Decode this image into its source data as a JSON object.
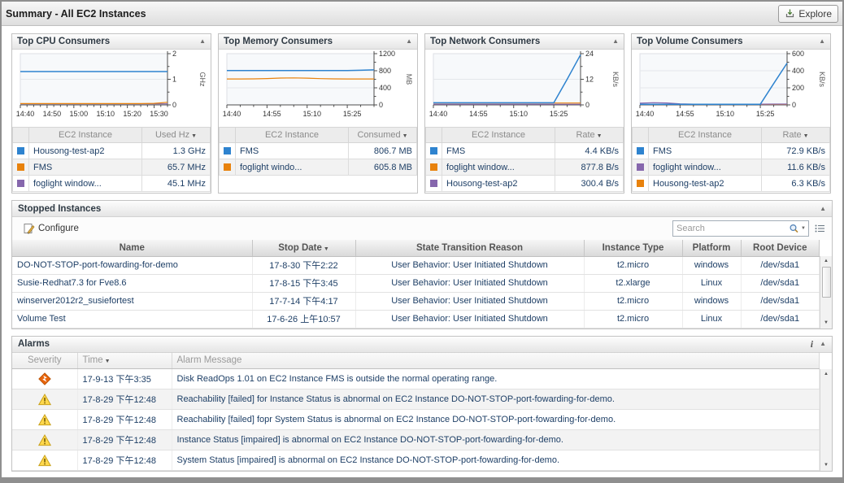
{
  "header": {
    "title": "Summary - All EC2 Instances",
    "explore_label": "Explore"
  },
  "colors": {
    "accent_blue": "#2e83cf",
    "accent_orange": "#e8820d",
    "accent_purple": "#8667ad",
    "text_navy": "#1e3f66"
  },
  "consumer_panels": [
    {
      "title": "Top CPU Consumers",
      "columns": [
        "EC2 Instance",
        "Used Hz"
      ],
      "rows": [
        {
          "color": "#2e83cf",
          "name": "Housong-test-ap2",
          "value": "1.3 GHz"
        },
        {
          "color": "#e8820d",
          "name": "FMS",
          "value": "65.7 MHz"
        },
        {
          "color": "#8667ad",
          "name": "foglight window...",
          "value": "45.1 MHz"
        }
      ]
    },
    {
      "title": "Top Memory Consumers",
      "columns": [
        "EC2 Instance",
        "Consumed"
      ],
      "rows": [
        {
          "color": "#2e83cf",
          "name": "FMS",
          "value": "806.7 MB"
        },
        {
          "color": "#e8820d",
          "name": "foglight windo...",
          "value": "605.8 MB"
        }
      ]
    },
    {
      "title": "Top Network Consumers",
      "columns": [
        "EC2 Instance",
        "Rate"
      ],
      "rows": [
        {
          "color": "#2e83cf",
          "name": "FMS",
          "value": "4.4 KB/s"
        },
        {
          "color": "#e8820d",
          "name": "foglight window...",
          "value": "877.8 B/s"
        },
        {
          "color": "#8667ad",
          "name": "Housong-test-ap2",
          "value": "300.4 B/s"
        }
      ]
    },
    {
      "title": "Top Volume Consumers",
      "columns": [
        "EC2 Instance",
        "Rate"
      ],
      "rows": [
        {
          "color": "#2e83cf",
          "name": "FMS",
          "value": "72.9 KB/s"
        },
        {
          "color": "#8667ad",
          "name": "foglight window...",
          "value": "11.6 KB/s"
        },
        {
          "color": "#e8820d",
          "name": "Housong-test-ap2",
          "value": "6.3 KB/s"
        }
      ]
    }
  ],
  "chart_data": [
    {
      "type": "line",
      "title": "Top CPU Consumers",
      "ylabel": "GHz",
      "ylim": [
        0,
        2
      ],
      "yticks": [
        0,
        1,
        2
      ],
      "x_ticks": [
        "14:40",
        "14:50",
        "15:00",
        "15:10",
        "15:20",
        "15:30"
      ],
      "x_tick_minutes": [
        0,
        10,
        20,
        30,
        40,
        50
      ],
      "x_span_minutes": 55,
      "series": [
        {
          "name": "Housong-test-ap2",
          "color": "#2e83cf",
          "values": [
            1.3,
            1.3,
            1.3,
            1.3,
            1.3,
            1.3,
            1.3,
            1.3,
            1.3,
            1.3,
            1.3,
            1.3
          ]
        },
        {
          "name": "FMS",
          "color": "#e8820d",
          "values": [
            0.05,
            0.05,
            0.05,
            0.05,
            0.05,
            0.05,
            0.05,
            0.05,
            0.05,
            0.05,
            0.06,
            0.1
          ]
        },
        {
          "name": "foglight window...",
          "color": "#8667ad",
          "values": [
            0.04,
            0.04,
            0.04,
            0.04,
            0.04,
            0.04,
            0.04,
            0.04,
            0.04,
            0.04,
            0.04,
            0.04
          ]
        }
      ]
    },
    {
      "type": "line",
      "title": "Top Memory Consumers",
      "ylabel": "MB",
      "ylim": [
        0,
        1200
      ],
      "yticks": [
        0,
        400,
        800,
        1200
      ],
      "x_ticks": [
        "14:40",
        "14:55",
        "15:10",
        "15:25"
      ],
      "x_tick_minutes": [
        0,
        15,
        30,
        45
      ],
      "x_span_minutes": 55,
      "series": [
        {
          "name": "FMS",
          "color": "#2e83cf",
          "values": [
            805,
            805,
            806,
            806,
            806,
            806,
            806,
            806,
            806,
            806,
            812,
            820
          ]
        },
        {
          "name": "foglight windo...",
          "color": "#e8820d",
          "values": [
            608,
            608,
            610,
            618,
            628,
            632,
            626,
            616,
            610,
            608,
            607,
            607
          ]
        }
      ]
    },
    {
      "type": "line",
      "title": "Top Network Consumers",
      "ylabel": "KB/s",
      "ylim": [
        0,
        24
      ],
      "yticks": [
        0,
        12,
        24
      ],
      "x_ticks": [
        "14:40",
        "14:55",
        "15:10",
        "15:25"
      ],
      "x_tick_minutes": [
        0,
        15,
        30,
        45
      ],
      "x_span_minutes": 55,
      "series": [
        {
          "name": "FMS",
          "color": "#2e83cf",
          "values": [
            1.0,
            1.0,
            1.0,
            1.0,
            1.0,
            1.0,
            1.0,
            1.0,
            1.0,
            1.0,
            12.0,
            23.5
          ]
        },
        {
          "name": "foglight window...",
          "color": "#e8820d",
          "values": [
            0.86,
            0.86,
            0.86,
            0.86,
            0.86,
            0.86,
            0.86,
            0.86,
            0.86,
            0.86,
            0.88,
            0.88
          ]
        },
        {
          "name": "Housong-test-ap2",
          "color": "#8667ad",
          "values": [
            0.3,
            0.3,
            0.3,
            0.3,
            0.3,
            0.3,
            0.3,
            0.3,
            0.3,
            0.3,
            0.3,
            0.3
          ]
        }
      ]
    },
    {
      "type": "line",
      "title": "Top Volume Consumers",
      "ylabel": "KB/s",
      "ylim": [
        0,
        600
      ],
      "yticks": [
        0,
        200,
        400,
        600
      ],
      "x_ticks": [
        "14:40",
        "14:55",
        "15:10",
        "15:25"
      ],
      "x_tick_minutes": [
        0,
        15,
        30,
        45
      ],
      "x_span_minutes": 55,
      "series": [
        {
          "name": "FMS",
          "color": "#2e83cf",
          "values": [
            8,
            8,
            8,
            8,
            8,
            8,
            8,
            8,
            8,
            8,
            250,
            490
          ]
        },
        {
          "name": "foglight window...",
          "color": "#8667ad",
          "values": [
            20,
            26,
            23,
            12,
            9,
            9,
            9,
            9,
            9,
            9,
            10,
            10
          ]
        },
        {
          "name": "Housong-test-ap2",
          "color": "#e8820d",
          "values": [
            7,
            7,
            7,
            7,
            7,
            7,
            7,
            7,
            7,
            7,
            7,
            7
          ]
        }
      ]
    }
  ],
  "stopped_instances": {
    "title": "Stopped Instances",
    "configure_label": "Configure",
    "search_placeholder": "Search",
    "columns": [
      "Name",
      "Stop Date",
      "State Transition Reason",
      "Instance Type",
      "Platform",
      "Root Device"
    ],
    "sorted_column": "Stop Date",
    "rows": [
      {
        "name": "DO-NOT-STOP-port-fowarding-for-demo",
        "stop_date": "17-8-30 下午2:22",
        "reason": "User Behavior: User Initiated Shutdown",
        "instance_type": "t2.micro",
        "platform": "windows",
        "root_device": "/dev/sda1"
      },
      {
        "name": "Susie-Redhat7.3 for Fve8.6",
        "stop_date": "17-8-15 下午3:45",
        "reason": "User Behavior: User Initiated Shutdown",
        "instance_type": "t2.xlarge",
        "platform": "Linux",
        "root_device": "/dev/sda1"
      },
      {
        "name": "winserver2012r2_susiefortest",
        "stop_date": "17-7-14 下午4:17",
        "reason": "User Behavior: User Initiated Shutdown",
        "instance_type": "t2.micro",
        "platform": "windows",
        "root_device": "/dev/sda1"
      },
      {
        "name": "Volume Test",
        "stop_date": "17-6-26 上午10:57",
        "reason": "User Behavior: User Initiated Shutdown",
        "instance_type": "t2.micro",
        "platform": "Linux",
        "root_device": "/dev/sda1"
      }
    ]
  },
  "alarms": {
    "title": "Alarms",
    "columns": [
      "Severity",
      "Time",
      "Alarm Message"
    ],
    "sorted_column": "Time",
    "rows": [
      {
        "severity": "fatal",
        "time": "17-9-13 下午3:35",
        "message": "Disk ReadOps 1.01 on EC2 Instance FMS is outside the normal operating range."
      },
      {
        "severity": "warning",
        "time": "17-8-29 下午12:48",
        "message": "Reachability [failed] for Instance Status is abnormal on EC2 Instance DO-NOT-STOP-port-fowarding-for-demo."
      },
      {
        "severity": "warning",
        "time": "17-8-29 下午12:48",
        "message": "Reachability [failed] fopr System Status is abnormal on EC2 Instance DO-NOT-STOP-port-fowarding-for-demo."
      },
      {
        "severity": "warning",
        "time": "17-8-29 下午12:48",
        "message": "Instance Status [impaired] is abnormal on EC2 Instance DO-NOT-STOP-port-fowarding-for-demo."
      },
      {
        "severity": "warning",
        "time": "17-8-29 下午12:48",
        "message": "System Status [impaired] is abnormal on EC2 Instance DO-NOT-STOP-port-fowarding-for-demo."
      }
    ]
  }
}
